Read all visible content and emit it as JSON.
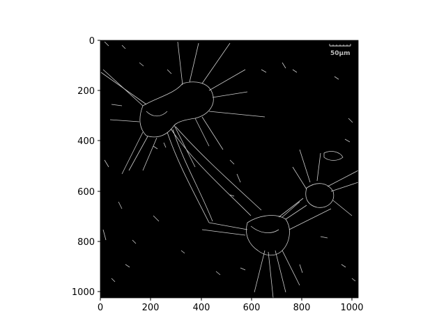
{
  "figure": {
    "image_description": "grayscale edge-detection image of cells with filaments on black background",
    "background_color": "#000000",
    "edge_color": "#c8c8c8",
    "scale_bar": {
      "label": "50μm"
    },
    "x_axis": {
      "ticks": [
        "0",
        "200",
        "400",
        "600",
        "800",
        "1000"
      ],
      "range": [
        0,
        1024
      ]
    },
    "y_axis": {
      "ticks": [
        "0",
        "200",
        "400",
        "600",
        "800",
        "1000"
      ],
      "range": [
        0,
        1024
      ],
      "inverted": true
    }
  }
}
